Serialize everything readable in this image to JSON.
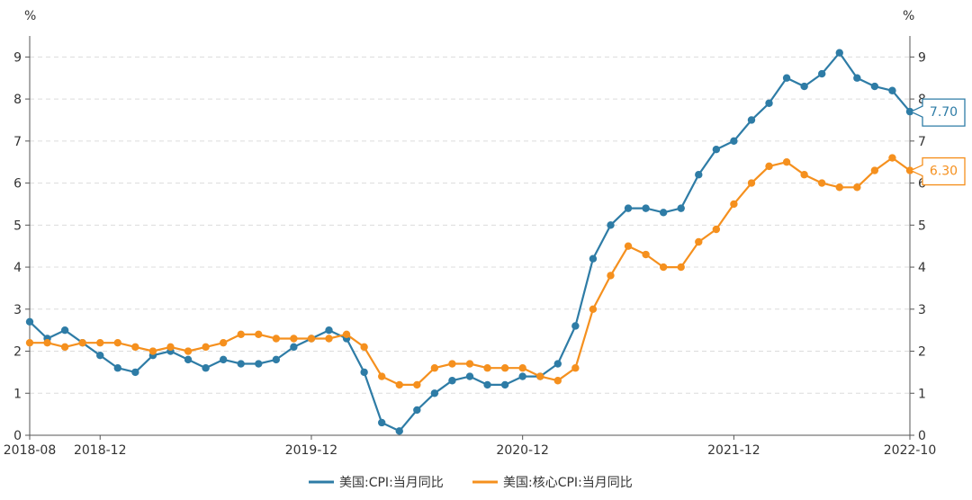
{
  "chart_data": {
    "type": "line",
    "y_unit_left": "%",
    "y_unit_right": "%",
    "ylim": [
      0,
      9.5
    ],
    "yticks": [
      0,
      1,
      2,
      3,
      4,
      5,
      6,
      7,
      8,
      9
    ],
    "x": [
      "2018-08",
      "2018-09",
      "2018-10",
      "2018-11",
      "2018-12",
      "2019-01",
      "2019-02",
      "2019-03",
      "2019-04",
      "2019-05",
      "2019-06",
      "2019-07",
      "2019-08",
      "2019-09",
      "2019-10",
      "2019-11",
      "2019-12",
      "2020-01",
      "2020-02",
      "2020-03",
      "2020-04",
      "2020-05",
      "2020-06",
      "2020-07",
      "2020-08",
      "2020-09",
      "2020-10",
      "2020-11",
      "2020-12",
      "2021-01",
      "2021-02",
      "2021-03",
      "2021-04",
      "2021-05",
      "2021-06",
      "2021-07",
      "2021-08",
      "2021-09",
      "2021-10",
      "2021-11",
      "2021-12",
      "2022-01",
      "2022-02",
      "2022-03",
      "2022-04",
      "2022-05",
      "2022-06",
      "2022-07",
      "2022-08",
      "2022-09",
      "2022-10"
    ],
    "x_tick_labels": [
      {
        "label": "2018-08",
        "index": 0
      },
      {
        "label": "2018-12",
        "index": 4
      },
      {
        "label": "2019-12",
        "index": 16
      },
      {
        "label": "2020-12",
        "index": 28
      },
      {
        "label": "2021-12",
        "index": 40
      },
      {
        "label": "2022-10",
        "index": 50
      }
    ],
    "series": [
      {
        "name": "美国:CPI:当月同比",
        "color": "#2e7ca6",
        "last_label": "7.70",
        "values": [
          2.7,
          2.3,
          2.5,
          2.2,
          1.9,
          1.6,
          1.5,
          1.9,
          2.0,
          1.8,
          1.6,
          1.8,
          1.7,
          1.7,
          1.8,
          2.1,
          2.3,
          2.5,
          2.3,
          1.5,
          0.3,
          0.1,
          0.6,
          1.0,
          1.3,
          1.4,
          1.2,
          1.2,
          1.4,
          1.4,
          1.7,
          2.6,
          4.2,
          5.0,
          5.4,
          5.4,
          5.3,
          5.4,
          6.2,
          6.8,
          7.0,
          7.5,
          7.9,
          8.5,
          8.3,
          8.6,
          9.1,
          8.5,
          8.3,
          8.2,
          7.7
        ]
      },
      {
        "name": "美国:核心CPI:当月同比",
        "color": "#f5901e",
        "last_label": "6.30",
        "values": [
          2.2,
          2.2,
          2.1,
          2.2,
          2.2,
          2.2,
          2.1,
          2.0,
          2.1,
          2.0,
          2.1,
          2.2,
          2.4,
          2.4,
          2.3,
          2.3,
          2.3,
          2.3,
          2.4,
          2.1,
          1.4,
          1.2,
          1.2,
          1.6,
          1.7,
          1.7,
          1.6,
          1.6,
          1.6,
          1.4,
          1.3,
          1.6,
          3.0,
          3.8,
          4.5,
          4.3,
          4.0,
          4.0,
          4.6,
          4.9,
          5.5,
          6.0,
          6.4,
          6.5,
          6.2,
          6.0,
          5.9,
          5.9,
          6.3,
          6.6,
          6.3
        ]
      }
    ],
    "grid": true,
    "legend_position": "bottom-center"
  }
}
